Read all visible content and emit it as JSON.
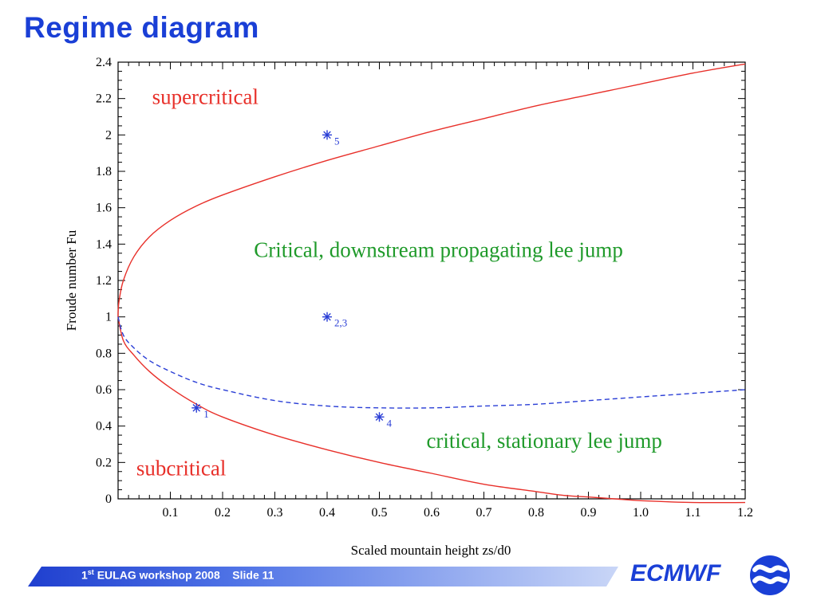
{
  "slide": {
    "title": "Regime diagram"
  },
  "chart_data": {
    "type": "line",
    "xlabel": "Scaled mountain height zs/d0",
    "ylabel": "Froude number Fu",
    "xlim": [
      0,
      1.2
    ],
    "ylim": [
      0,
      2.4
    ],
    "x_ticks": [
      0.1,
      0.2,
      0.3,
      0.4,
      0.5,
      0.6,
      0.7,
      0.8,
      0.9,
      1.0,
      1.1,
      1.2
    ],
    "x_tick_labels": [
      "0.1",
      "0.2",
      "0.3",
      "0.4",
      "0.5",
      "0.6",
      "0.7",
      "0.8",
      "0.9",
      "1.0",
      "1.1",
      "1.2"
    ],
    "y_ticks": [
      0,
      0.2,
      0.4,
      0.6,
      0.8,
      1,
      1.2,
      1.4,
      1.6,
      1.8,
      2,
      2.2,
      2.4
    ],
    "y_tick_labels": [
      "0",
      "0.2",
      "0.4",
      "0.6",
      "0.8",
      "1",
      "1.2",
      "1.4",
      "1.6",
      "1.8",
      "2",
      "2.2",
      "2.4"
    ],
    "grid": false,
    "series": [
      {
        "style": "solid",
        "color": "#e8302a",
        "x": [
          0,
          0.0002,
          0.002,
          0.01,
          0.03,
          0.06,
          0.1,
          0.15,
          0.2,
          0.3,
          0.4,
          0.5,
          0.6,
          0.7,
          0.8,
          0.9,
          1.0,
          1.1,
          1.2
        ],
        "y": [
          1.0,
          1.03,
          1.09,
          1.2,
          1.33,
          1.44,
          1.53,
          1.61,
          1.67,
          1.77,
          1.86,
          1.94,
          2.02,
          2.09,
          2.16,
          2.22,
          2.28,
          2.34,
          2.39
        ]
      },
      {
        "style": "solid",
        "color": "#e8302a",
        "x": [
          0,
          0.01,
          0.03,
          0.06,
          0.1,
          0.15,
          0.2,
          0.3,
          0.4,
          0.5,
          0.6,
          0.7,
          0.8,
          0.85,
          0.9,
          0.95,
          1.0,
          1.1,
          1.2
        ],
        "y": [
          1.0,
          0.87,
          0.79,
          0.7,
          0.61,
          0.52,
          0.45,
          0.35,
          0.27,
          0.2,
          0.14,
          0.08,
          0.04,
          0.02,
          0.01,
          0.0,
          -0.01,
          -0.02,
          -0.02
        ]
      },
      {
        "style": "dashed",
        "color": "#2b3fd6",
        "x": [
          0,
          0.01,
          0.03,
          0.06,
          0.1,
          0.15,
          0.2,
          0.3,
          0.4,
          0.5,
          0.6,
          0.7,
          0.8,
          0.9,
          1.0,
          1.1,
          1.2
        ],
        "y": [
          1.0,
          0.9,
          0.83,
          0.76,
          0.7,
          0.64,
          0.6,
          0.54,
          0.51,
          0.5,
          0.5,
          0.51,
          0.52,
          0.54,
          0.56,
          0.58,
          0.6
        ]
      }
    ],
    "points": [
      {
        "x": 0.15,
        "y": 0.5,
        "label": "1"
      },
      {
        "x": 0.4,
        "y": 1.0,
        "label": "2,3"
      },
      {
        "x": 0.5,
        "y": 0.45,
        "label": "4"
      },
      {
        "x": 0.4,
        "y": 2.0,
        "label": "5"
      }
    ],
    "annotations": [
      {
        "text": "supercritical",
        "color": "#e8302a",
        "x": 0.065,
        "y": 2.17
      },
      {
        "text": "Critical, downstream propagating lee jump",
        "color": "#1f9a2a",
        "x": 0.26,
        "y": 1.33
      },
      {
        "text": "critical, stationary lee jump",
        "color": "#1f9a2a",
        "x": 0.59,
        "y": 0.28
      },
      {
        "text": "subcritical",
        "color": "#e8302a",
        "x": 0.035,
        "y": 0.13
      }
    ]
  },
  "footer": {
    "text_pre": "1",
    "text_sup": "st",
    "text_post": " EULAG workshop 2008    Slide 11"
  },
  "logo": {
    "text": "ECMWF"
  },
  "colors": {
    "title_blue": "#1a3fd6",
    "curve_red": "#e8302a",
    "dashed_blue": "#2b3fd6",
    "label_green": "#1f9a2a"
  }
}
